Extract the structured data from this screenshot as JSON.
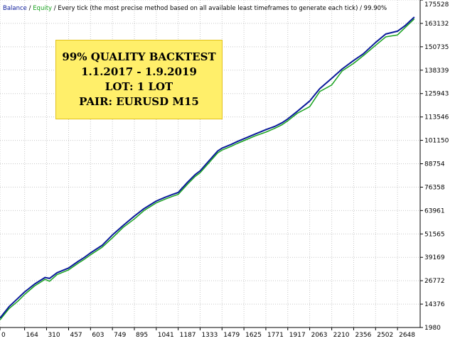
{
  "legend": {
    "balance": "Balance",
    "sep1": " / ",
    "equity": "Equity",
    "sep2": " / ",
    "model": "Every tick (the most precise method based on all available least timeframes to generate each tick)",
    "sep3": " / ",
    "quality": "99.90%"
  },
  "annotation": {
    "line1": "99% QUALITY BACKTEST",
    "line2": "1.1.2017 - 1.9.2019",
    "line3": "LOT: 1 LOT",
    "line4": "PAIR: EURUSD M15"
  },
  "colors": {
    "balance": "#0a1a9a",
    "equity": "#18a21e",
    "annotation_bg": "#ffef6a",
    "grid": "#c8c8c8"
  },
  "chart_data": {
    "type": "line",
    "title": "",
    "xlabel": "",
    "ylabel": "",
    "grid": true,
    "x_ticks": [
      0,
      164,
      310,
      457,
      603,
      749,
      895,
      1041,
      1187,
      1333,
      1479,
      1625,
      1771,
      1917,
      2063,
      2210,
      2356,
      2502,
      2648
    ],
    "y_ticks": [
      1980,
      14376,
      26772,
      39169,
      51565,
      63961,
      76358,
      88754,
      101150,
      113546,
      125943,
      138339,
      150735,
      163132,
      175528
    ],
    "xlim": [
      0,
      2799
    ],
    "ylim": [
      1980,
      175528
    ],
    "series": [
      {
        "name": "Balance",
        "color": "#0a1a9a",
        "x": [
          0,
          60,
          120,
          164,
          230,
          300,
          330,
          380,
          457,
          520,
          560,
          603,
          680,
          749,
          820,
          895,
          960,
          1041,
          1100,
          1150,
          1187,
          1250,
          1300,
          1333,
          1400,
          1450,
          1479,
          1540,
          1580,
          1625,
          1700,
          1771,
          1830,
          1880,
          1917,
          1980,
          2063,
          2130,
          2210,
          2280,
          2356,
          2420,
          2502,
          2570,
          2648,
          2700,
          2760
        ],
        "y": [
          7000,
          13000,
          17500,
          20800,
          25000,
          28500,
          28000,
          31000,
          33500,
          37000,
          39000,
          41500,
          45500,
          51000,
          56000,
          61000,
          65000,
          69000,
          71000,
          72500,
          73500,
          79000,
          83000,
          85000,
          91000,
          95500,
          97000,
          99000,
          100500,
          102000,
          104500,
          106800,
          108500,
          110500,
          112500,
          116500,
          122000,
          128500,
          134000,
          139000,
          143500,
          147000,
          153000,
          157500,
          159000,
          162000,
          166500
        ]
      },
      {
        "name": "Equity",
        "color": "#18a21e",
        "x": [
          0,
          60,
          120,
          164,
          230,
          300,
          330,
          380,
          457,
          520,
          560,
          603,
          680,
          749,
          820,
          895,
          960,
          1041,
          1100,
          1150,
          1187,
          1250,
          1300,
          1333,
          1400,
          1450,
          1479,
          1540,
          1580,
          1625,
          1700,
          1771,
          1830,
          1880,
          1917,
          1980,
          2063,
          2130,
          2210,
          2280,
          2356,
          2420,
          2502,
          2570,
          2648,
          2700,
          2760
        ],
        "y": [
          6000,
          12000,
          16000,
          19500,
          24000,
          27500,
          26500,
          30000,
          32500,
          36000,
          38000,
          40500,
          44500,
          49500,
          55000,
          59500,
          64000,
          68000,
          70000,
          71500,
          72500,
          78000,
          82000,
          84000,
          90000,
          94500,
          96000,
          98000,
          99500,
          101000,
          103500,
          105500,
          107500,
          109500,
          111500,
          115500,
          119000,
          127000,
          130500,
          138000,
          142000,
          146000,
          151500,
          156000,
          157000,
          161000,
          165500
        ]
      }
    ]
  }
}
